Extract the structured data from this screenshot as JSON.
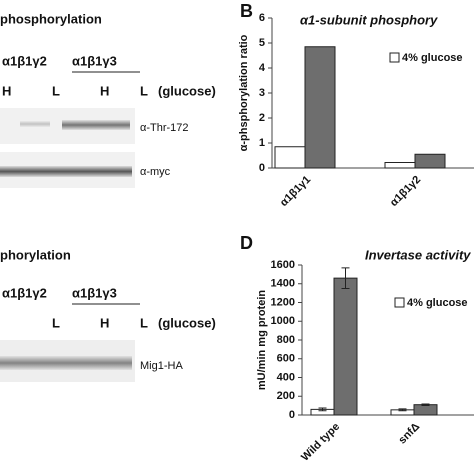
{
  "blots": {
    "top": {
      "title": "phosphorylation",
      "groups": [
        "α1β1γ2",
        "α1β1γ3"
      ],
      "lanes": [
        "H",
        "L",
        "H",
        "L"
      ],
      "condition": "(glucose)",
      "rows": [
        "α-Thr-172",
        "α-myc"
      ]
    },
    "bottom": {
      "title": "phorylation",
      "groups": [
        "α1β1γ2",
        "α1β1γ3"
      ],
      "lanes": [
        "L",
        "H",
        "L"
      ],
      "condition": "(glucose)",
      "rows": [
        "Mig1-HA"
      ]
    }
  },
  "chart_data": [
    {
      "type": "bar",
      "panel_label": "B",
      "title": "α1-subunit phosphory",
      "ylabel": "α-phsphorylation ratio",
      "categories": [
        "α1β1γ1",
        "α1β1γ2"
      ],
      "series": [
        {
          "name": "4% glucose",
          "color": "#ffffff",
          "values": [
            0.85,
            0.22
          ]
        },
        {
          "color": "#6e6e6e",
          "values": [
            4.85,
            0.55
          ]
        }
      ],
      "ylim": [
        0,
        6
      ],
      "yticks": [
        0,
        1,
        2,
        3,
        4,
        5,
        6
      ],
      "legend": "top-right"
    },
    {
      "type": "bar",
      "panel_label": "D",
      "title": "Invertase activity",
      "ylabel": "mU/min mg protein",
      "categories": [
        "Wild type",
        "snfΔ"
      ],
      "series": [
        {
          "name": "4% glucose",
          "color": "#ffffff",
          "values": [
            60,
            55
          ],
          "errors": [
            15,
            10
          ]
        },
        {
          "color": "#6e6e6e",
          "values": [
            1460,
            110
          ],
          "errors": [
            110,
            8
          ]
        }
      ],
      "ylim": [
        0,
        1600
      ],
      "yticks": [
        0,
        200,
        400,
        600,
        800,
        1000,
        1200,
        1400,
        1600
      ],
      "legend": "top-right"
    }
  ]
}
